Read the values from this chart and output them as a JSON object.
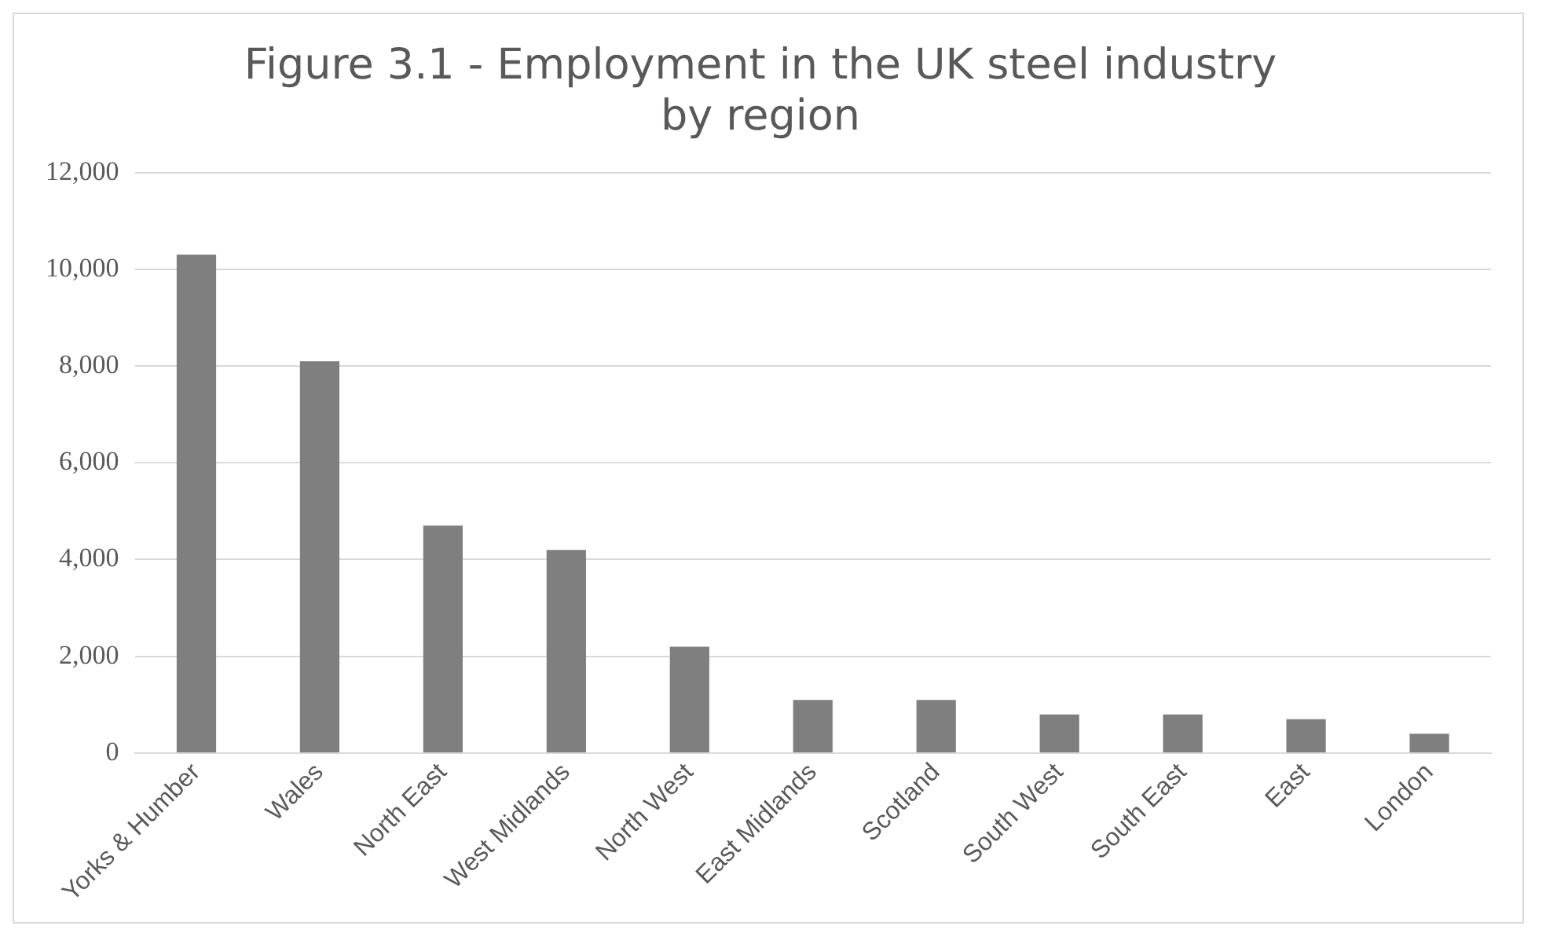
{
  "chart_data": {
    "type": "bar",
    "title": "Figure 3.1 - Employment in the UK steel industry by region",
    "categories": [
      "Yorks & Humber",
      "Wales",
      "North East",
      "West Midlands",
      "North West",
      "East Midlands",
      "Scotland",
      "South West",
      "South East",
      "East",
      "London"
    ],
    "values": [
      10300,
      8100,
      4700,
      4200,
      2200,
      1100,
      1100,
      800,
      800,
      700,
      400
    ],
    "color": "#7f7f7f",
    "ylim": [
      0,
      12000
    ],
    "yticks": [
      {
        "value": 0,
        "label": "0"
      },
      {
        "value": 2000,
        "label": "2,000"
      },
      {
        "value": 4000,
        "label": "4,000"
      },
      {
        "value": 6000,
        "label": "6,000"
      },
      {
        "value": 8000,
        "label": "8,000"
      },
      {
        "value": 10000,
        "label": "10,000"
      },
      {
        "value": 12000,
        "label": "12,000"
      }
    ],
    "grid": "y",
    "legend": false
  }
}
